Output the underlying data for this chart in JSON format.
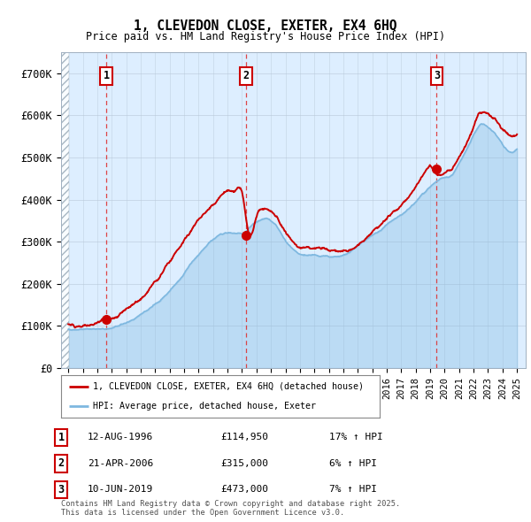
{
  "title_line1": "1, CLEVEDON CLOSE, EXETER, EX4 6HQ",
  "title_line2": "Price paid vs. HM Land Registry's House Price Index (HPI)",
  "ylim": [
    0,
    750000
  ],
  "yticks": [
    0,
    100000,
    200000,
    300000,
    400000,
    500000,
    600000,
    700000
  ],
  "ytick_labels": [
    "£0",
    "£100K",
    "£200K",
    "£300K",
    "£400K",
    "£500K",
    "£600K",
    "£700K"
  ],
  "hpi_color": "#7eb8e0",
  "price_color": "#cc0000",
  "dashed_line_color": "#dd3333",
  "background_color": "#ffffff",
  "plot_bg_color": "#ddeeff",
  "legend_label1": "1, CLEVEDON CLOSE, EXETER, EX4 6HQ (detached house)",
  "legend_label2": "HPI: Average price, detached house, Exeter",
  "transactions": [
    {
      "num": 1,
      "date": "12-AUG-1996",
      "price": 114950,
      "pct": "17%",
      "dir": "↑",
      "x_year": 1996.62
    },
    {
      "num": 2,
      "date": "21-APR-2006",
      "price": 315000,
      "pct": "6%",
      "dir": "↑",
      "x_year": 2006.3
    },
    {
      "num": 3,
      "date": "10-JUN-2019",
      "price": 473000,
      "pct": "7%",
      "dir": "↑",
      "x_year": 2019.45
    }
  ],
  "footer_text": "Contains HM Land Registry data © Crown copyright and database right 2025.\nThis data is licensed under the Open Government Licence v3.0.",
  "hpi_key_x": [
    1994.0,
    1994.5,
    1995.0,
    1995.5,
    1996.0,
    1996.5,
    1997.0,
    1997.5,
    1998.0,
    1998.5,
    1999.0,
    1999.5,
    2000.0,
    2000.5,
    2001.0,
    2001.5,
    2002.0,
    2002.5,
    2003.0,
    2003.5,
    2004.0,
    2004.5,
    2005.0,
    2005.5,
    2006.0,
    2006.5,
    2007.0,
    2007.5,
    2008.0,
    2008.5,
    2009.0,
    2009.5,
    2010.0,
    2010.5,
    2011.0,
    2011.5,
    2012.0,
    2012.5,
    2013.0,
    2013.5,
    2014.0,
    2014.5,
    2015.0,
    2015.5,
    2016.0,
    2016.5,
    2017.0,
    2017.5,
    2018.0,
    2018.5,
    2019.0,
    2019.5,
    2020.0,
    2020.5,
    2021.0,
    2021.5,
    2022.0,
    2022.5,
    2023.0,
    2023.5,
    2024.0,
    2024.5,
    2025.0
  ],
  "hpi_key_y": [
    92000,
    91000,
    91000,
    91000,
    91500,
    93000,
    97000,
    103000,
    110000,
    118000,
    128000,
    140000,
    153000,
    168000,
    185000,
    204000,
    225000,
    248000,
    268000,
    286000,
    302000,
    315000,
    320000,
    320000,
    318000,
    330000,
    345000,
    352000,
    348000,
    330000,
    302000,
    284000,
    272000,
    270000,
    270000,
    269000,
    268000,
    270000,
    275000,
    283000,
    294000,
    306000,
    318000,
    330000,
    342000,
    356000,
    370000,
    385000,
    400000,
    418000,
    435000,
    450000,
    455000,
    462000,
    490000,
    520000,
    555000,
    578000,
    570000,
    555000,
    530000,
    515000,
    520000
  ],
  "price_key_x": [
    1994.0,
    1994.5,
    1995.0,
    1995.5,
    1996.0,
    1996.5,
    1997.0,
    1997.5,
    1998.0,
    1998.5,
    1999.0,
    1999.5,
    2000.0,
    2000.5,
    2001.0,
    2001.5,
    2002.0,
    2002.5,
    2003.0,
    2003.5,
    2004.0,
    2004.5,
    2005.0,
    2005.5,
    2006.0,
    2006.5,
    2007.0,
    2007.5,
    2008.0,
    2008.5,
    2009.0,
    2009.5,
    2010.0,
    2010.5,
    2011.0,
    2011.5,
    2012.0,
    2012.5,
    2013.0,
    2013.5,
    2014.0,
    2014.5,
    2015.0,
    2015.5,
    2016.0,
    2016.5,
    2017.0,
    2017.5,
    2018.0,
    2018.5,
    2019.0,
    2019.5,
    2020.0,
    2020.5,
    2021.0,
    2021.5,
    2022.0,
    2022.5,
    2023.0,
    2023.5,
    2024.0,
    2024.5,
    2025.0
  ],
  "price_key_y": [
    104000,
    103000,
    103000,
    103000,
    103500,
    114950,
    120000,
    128000,
    138000,
    148000,
    160000,
    175000,
    193000,
    214000,
    238000,
    263000,
    290000,
    318000,
    343000,
    366000,
    388000,
    408000,
    418000,
    418000,
    414000,
    315000,
    362000,
    382000,
    378000,
    358000,
    328000,
    308000,
    295000,
    293000,
    293000,
    292000,
    291000,
    293000,
    298000,
    308000,
    320000,
    334000,
    348000,
    363000,
    378000,
    395000,
    412000,
    430000,
    450000,
    472000,
    492000,
    473000,
    478000,
    485000,
    515000,
    548000,
    590000,
    618000,
    608000,
    592000,
    565000,
    548000,
    555000
  ],
  "hatch_xlim": [
    1993.5,
    1994.08
  ],
  "xlim": [
    1993.5,
    2025.6
  ],
  "xtick_years": [
    1994,
    1995,
    1996,
    1997,
    1998,
    1999,
    2000,
    2001,
    2002,
    2003,
    2004,
    2005,
    2006,
    2007,
    2008,
    2009,
    2010,
    2011,
    2012,
    2013,
    2014,
    2015,
    2016,
    2017,
    2018,
    2019,
    2020,
    2021,
    2022,
    2023,
    2024,
    2025
  ]
}
